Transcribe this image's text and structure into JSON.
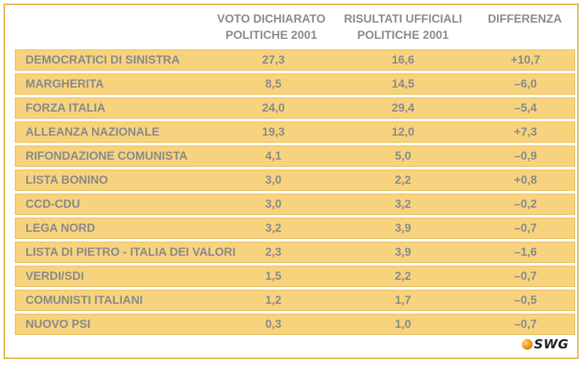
{
  "chart_data": {
    "type": "table",
    "columns": [
      [
        "VOTO DICHIARATO",
        "POLITICHE 2001"
      ],
      [
        "RISULTATI UFFICIALI",
        "POLITICHE 2001"
      ],
      [
        "DIFFERENZA"
      ]
    ],
    "rows": [
      {
        "party": "DEMOCRATICI DI SINISTRA",
        "voto": "27,3",
        "risultati": "16,6",
        "diff": "+10,7"
      },
      {
        "party": "MARGHERITA",
        "voto": "8,5",
        "risultati": "14,5",
        "diff": "–6,0"
      },
      {
        "party": "FORZA ITALIA",
        "voto": "24,0",
        "risultati": "29,4",
        "diff": "–5,4"
      },
      {
        "party": "ALLEANZA NAZIONALE",
        "voto": "19,3",
        "risultati": "12,0",
        "diff": "+7,3"
      },
      {
        "party": "RIFONDAZIONE COMUNISTA",
        "voto": "4,1",
        "risultati": "5,0",
        "diff": "–0,9"
      },
      {
        "party": "LISTA BONINO",
        "voto": "3,0",
        "risultati": "2,2",
        "diff": "+0,8"
      },
      {
        "party": "CCD-CDU",
        "voto": "3,0",
        "risultati": "3,2",
        "diff": "–0,2"
      },
      {
        "party": "LEGA NORD",
        "voto": "3,2",
        "risultati": "3,9",
        "diff": "–0,7"
      },
      {
        "party": "LISTA DI PIETRO - ITALIA DEI VALORI",
        "voto": "2,3",
        "risultati": "3,9",
        "diff": "–1,6"
      },
      {
        "party": "VERDI/SDI",
        "voto": "1,5",
        "risultati": "2,2",
        "diff": "–0,7"
      },
      {
        "party": "COMUNISTI ITALIANI",
        "voto": "1,2",
        "risultati": "1,7",
        "diff": "–0,5"
      },
      {
        "party": "NUOVO PSI",
        "voto": "0,3",
        "risultati": "1,0",
        "diff": "–0,7"
      }
    ]
  },
  "logo": {
    "text": "SWG"
  },
  "colors": {
    "border": "#e3b340",
    "row_fill": "#f7d37e",
    "text": "#8a8a8a"
  }
}
